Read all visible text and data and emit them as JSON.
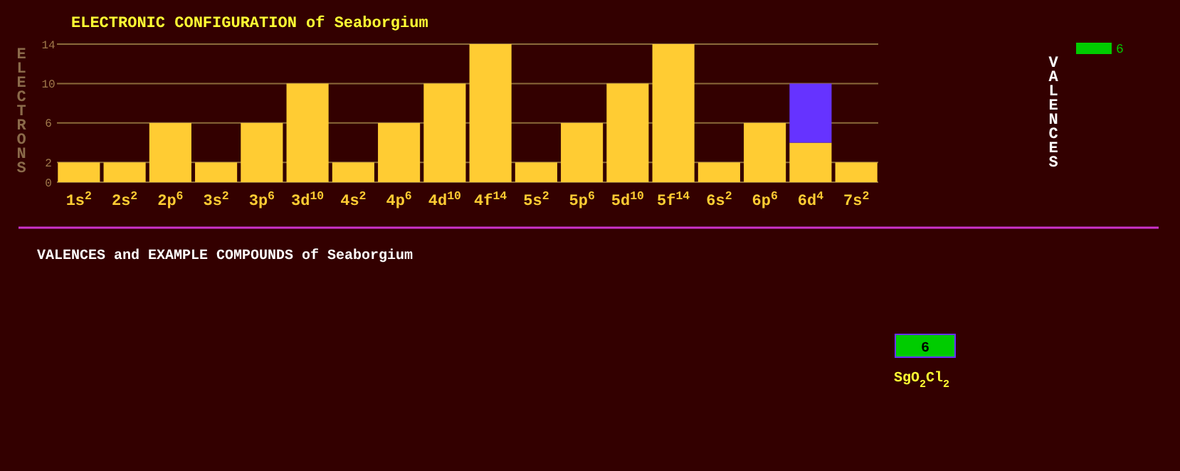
{
  "chart_data": [
    {
      "type": "bar",
      "title": "ELECTRONIC CONFIGURATION of Seaborgium",
      "ylabel": "ELECTRONS",
      "stacked": true,
      "grid": "y",
      "ylim": [
        0,
        14
      ],
      "yticks": [
        0,
        2,
        6,
        10,
        14
      ],
      "categories": [
        "1s$^{2}$",
        "2s$^{2}$",
        "2p$^{6}$",
        "3s$^{2}$",
        "3p$^{6}$",
        "3d$^{10}$",
        "4s$^{2}$",
        "4p$^{6}$",
        "4d$^{10}$",
        "4f$^{14}$",
        "5s$^{2}$",
        "5p$^{6}$",
        "5d$^{10}$",
        "5f$^{14}$",
        "6s$^{2}$",
        "6p$^{6}$",
        "6d$^{4}$",
        "7s$^{2}$"
      ],
      "series": [
        {
          "color": "#ffcc33",
          "values": [
            2,
            2,
            6,
            2,
            6,
            10,
            2,
            6,
            10,
            14,
            2,
            6,
            10,
            14,
            2,
            6,
            4,
            2
          ]
        },
        {
          "color": "#6633ff",
          "values": [
            0,
            0,
            0,
            0,
            0,
            0,
            0,
            0,
            0,
            0,
            0,
            0,
            0,
            0,
            0,
            0,
            6,
            0
          ]
        }
      ]
    },
    {
      "type": "other",
      "title": "VALENCES and EXAMPLE COMPOUNDS of Seaborgium",
      "annotations": [
        "VALENCES",
        "6",
        "6",
        "SgO$_{2}$Cl$_{2}$"
      ]
    }
  ]
}
